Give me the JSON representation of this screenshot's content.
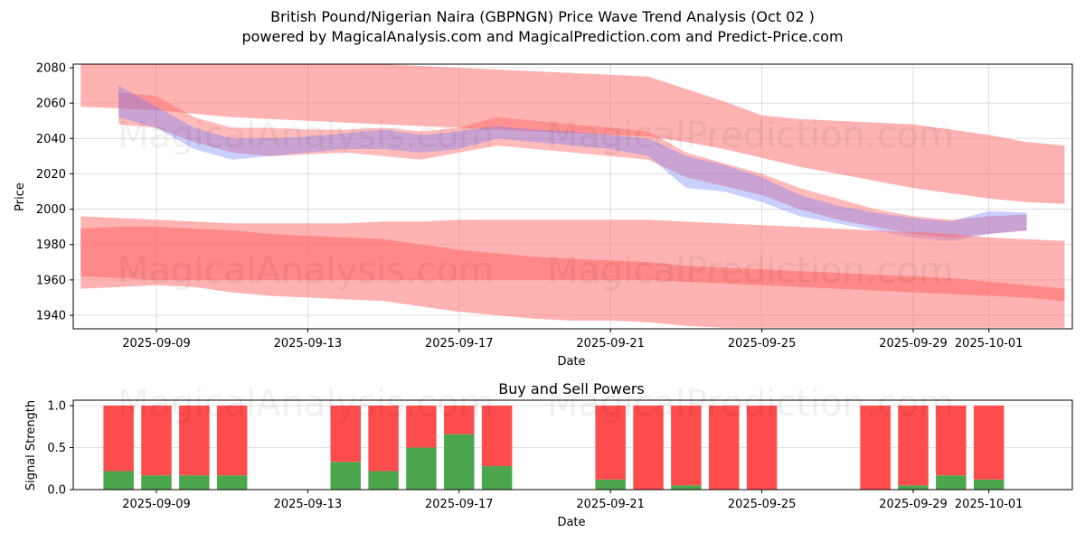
{
  "title": "British Pound/Nigerian Naira (GBPNGN) Price Wave Trend Analysis (Oct 02 )",
  "subtitle": "powered by MagicalAnalysis.com and MagicalPrediction.com and Predict-Price.com",
  "watermarks": [
    "MagicalAnalysis.com",
    "MagicalPrediction.com"
  ],
  "colors": {
    "buy": "#4ca64c",
    "sell": "#ff4c4c",
    "band_red": "#ff6666",
    "band_blue": "#6677ff"
  },
  "chart_data": [
    {
      "type": "area",
      "title": "",
      "xlabel": "Date",
      "ylabel": "Price",
      "ylim": [
        1933,
        2082
      ],
      "yticks": [
        1940,
        1960,
        1980,
        2000,
        2020,
        2040,
        2060,
        2080
      ],
      "xtick_labels": [
        "2025-09-09",
        "2025-09-13",
        "2025-09-17",
        "2025-09-21",
        "2025-09-25",
        "2025-09-29",
        "2025-10-01"
      ],
      "grid": true,
      "x": [
        "2025-09-07",
        "2025-09-08",
        "2025-09-09",
        "2025-09-10",
        "2025-09-11",
        "2025-09-12",
        "2025-09-13",
        "2025-09-14",
        "2025-09-15",
        "2025-09-16",
        "2025-09-17",
        "2025-09-18",
        "2025-09-19",
        "2025-09-20",
        "2025-09-21",
        "2025-09-22",
        "2025-09-23",
        "2025-09-24",
        "2025-09-25",
        "2025-09-26",
        "2025-09-27",
        "2025-09-28",
        "2025-09-29",
        "2025-09-30",
        "2025-10-01",
        "2025-10-02",
        "2025-10-03"
      ],
      "series": [
        {
          "name": "upper-wide-band",
          "color": "red",
          "upper": [
            2082,
            2082,
            2082,
            2082,
            2082,
            2082,
            2082,
            2082,
            2082,
            2081,
            2080,
            2079,
            2078,
            2077,
            2076,
            2075,
            2068,
            2061,
            2053,
            2051,
            2050,
            2049,
            2048,
            2045,
            2042,
            2038,
            2036
          ],
          "lower": [
            2058,
            2057,
            2056,
            2054,
            2052,
            2051,
            2050,
            2049,
            2048,
            2047,
            2046,
            2045,
            2044,
            2043,
            2042,
            2041,
            2038,
            2034,
            2029,
            2024,
            2020,
            2016,
            2012,
            2009,
            2006,
            2004,
            2003
          ]
        },
        {
          "name": "price-wave-band-1",
          "color": "red",
          "upper": [
            null,
            2066,
            2064,
            2052,
            2046,
            2046,
            2045,
            2045,
            2046,
            2044,
            2046,
            2052,
            2050,
            2048,
            2046,
            2044,
            2032,
            2026,
            2020,
            2012,
            2006,
            2000,
            1996,
            1994,
            1996,
            1997,
            null
          ],
          "lower": [
            null,
            2048,
            2046,
            2038,
            2032,
            2030,
            2031,
            2032,
            2030,
            2028,
            2032,
            2036,
            2034,
            2032,
            2030,
            2028,
            2018,
            2013,
            2008,
            2000,
            1994,
            1990,
            1986,
            1984,
            1986,
            1988,
            null
          ]
        },
        {
          "name": "price-wave-band-2",
          "color": "blue",
          "upper": [
            null,
            2070,
            2058,
            2046,
            2040,
            2040,
            2041,
            2043,
            2045,
            2042,
            2044,
            2047,
            2045,
            2044,
            2042,
            2040,
            2030,
            2025,
            2018,
            2008,
            2002,
            1998,
            1995,
            1993,
            1999,
            1998,
            null
          ],
          "lower": [
            null,
            2052,
            2046,
            2034,
            2028,
            2030,
            2032,
            2034,
            2034,
            2032,
            2034,
            2040,
            2038,
            2036,
            2034,
            2030,
            2012,
            2010,
            2004,
            1996,
            1992,
            1988,
            1984,
            1982,
            1986,
            1988,
            null
          ]
        },
        {
          "name": "lower-wide-band-outer",
          "color": "red",
          "upper": [
            1996,
            1995,
            1994,
            1993,
            1992,
            1992,
            1992,
            1992,
            1993,
            1993,
            1994,
            1994,
            1994,
            1994,
            1994,
            1994,
            1993,
            1992,
            1991,
            1990,
            1989,
            1988,
            1987,
            1986,
            1984,
            1983,
            1982
          ],
          "lower": [
            1955,
            1956,
            1957,
            1956,
            1953,
            1951,
            1950,
            1949,
            1948,
            1945,
            1942,
            1940,
            1938,
            1937,
            1937,
            1936,
            1934,
            1933,
            1933,
            1933,
            1933,
            1933,
            1933,
            1933,
            1933,
            1933,
            1933
          ]
        },
        {
          "name": "lower-wide-band-inner",
          "color": "red",
          "upper": [
            1989,
            1990,
            1990,
            1989,
            1988,
            1986,
            1985,
            1984,
            1983,
            1980,
            1977,
            1975,
            1973,
            1972,
            1971,
            1970,
            1968,
            1967,
            1966,
            1965,
            1964,
            1963,
            1962,
            1961,
            1959,
            1957,
            1955
          ],
          "lower": [
            1962,
            1961,
            1960,
            1960,
            1960,
            1960,
            1960,
            1960,
            1960,
            1960,
            1960,
            1960,
            1960,
            1960,
            1960,
            1960,
            1959,
            1958,
            1957,
            1956,
            1955,
            1954,
            1953,
            1952,
            1951,
            1950,
            1948
          ]
        }
      ]
    },
    {
      "type": "bar",
      "title": "Buy and Sell Powers",
      "xlabel": "Date",
      "ylabel": "Signal Strength",
      "ylim": [
        0,
        1.05
      ],
      "yticks": [
        "0.0",
        "0.5",
        "1.0"
      ],
      "xtick_labels": [
        "2025-09-09",
        "2025-09-13",
        "2025-09-17",
        "2025-09-21",
        "2025-09-25",
        "2025-09-29",
        "2025-10-01"
      ],
      "grid": true,
      "categories": [
        "2025-09-08",
        "2025-09-09",
        "2025-09-10",
        "2025-09-11",
        "2025-09-14",
        "2025-09-15",
        "2025-09-16",
        "2025-09-17",
        "2025-09-18",
        "2025-09-21",
        "2025-09-22",
        "2025-09-23",
        "2025-09-24",
        "2025-09-25",
        "2025-09-28",
        "2025-09-29",
        "2025-09-30",
        "2025-10-01"
      ],
      "series": [
        {
          "name": "Buy",
          "values": [
            0.22,
            0.17,
            0.17,
            0.17,
            0.33,
            0.22,
            0.5,
            0.66,
            0.28,
            0.12,
            0.0,
            0.05,
            0.0,
            0.0,
            0.0,
            0.05,
            0.17,
            0.12
          ]
        },
        {
          "name": "Sell",
          "values": [
            0.78,
            0.83,
            0.83,
            0.83,
            0.67,
            0.78,
            0.5,
            0.34,
            0.72,
            0.88,
            1.0,
            0.95,
            1.0,
            1.0,
            1.0,
            0.95,
            0.83,
            0.88
          ]
        }
      ]
    }
  ]
}
